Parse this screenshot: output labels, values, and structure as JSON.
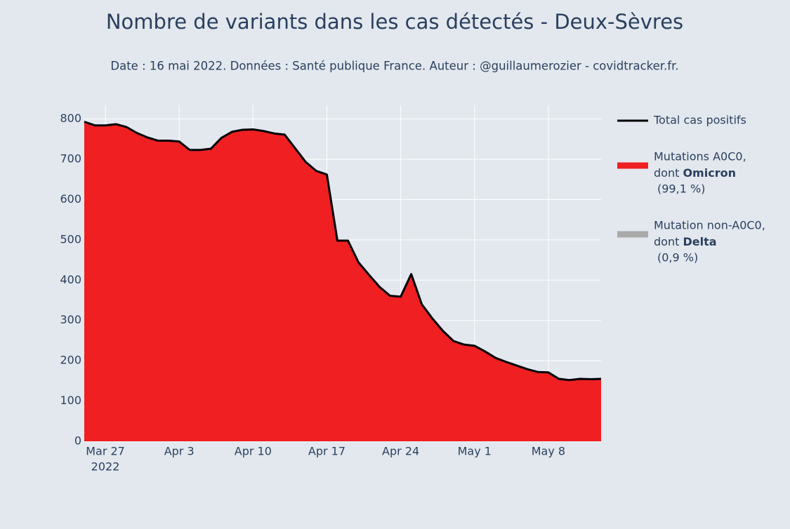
{
  "chart_data": {
    "type": "area",
    "title": "Nombre de variants dans les cas détectés - Deux-Sèvres",
    "subtitle": "Date : 16 mai 2022. Données : Santé publique France. Auteur : @guillaumerozier - covidtracker.fr.",
    "x": [
      "2022-03-25",
      "2022-03-26",
      "2022-03-27",
      "2022-03-28",
      "2022-03-29",
      "2022-03-30",
      "2022-03-31",
      "2022-04-01",
      "2022-04-02",
      "2022-04-03",
      "2022-04-04",
      "2022-04-05",
      "2022-04-06",
      "2022-04-07",
      "2022-04-08",
      "2022-04-09",
      "2022-04-10",
      "2022-04-11",
      "2022-04-12",
      "2022-04-13",
      "2022-04-14",
      "2022-04-15",
      "2022-04-16",
      "2022-04-17",
      "2022-04-18",
      "2022-04-19",
      "2022-04-20",
      "2022-04-21",
      "2022-04-22",
      "2022-04-23",
      "2022-04-24",
      "2022-04-25",
      "2022-04-26",
      "2022-04-27",
      "2022-04-28",
      "2022-04-29",
      "2022-04-30",
      "2022-05-01",
      "2022-05-02",
      "2022-05-03",
      "2022-05-04",
      "2022-05-05",
      "2022-05-06",
      "2022-05-07",
      "2022-05-08",
      "2022-05-09",
      "2022-05-10",
      "2022-05-11",
      "2022-05-12",
      "2022-05-13"
    ],
    "series": [
      {
        "name": {
          "line1": "Total cas positifs"
        },
        "color": "#000000",
        "kind": "line",
        "values": [
          793,
          784,
          784,
          787,
          780,
          765,
          754,
          746,
          746,
          744,
          723,
          723,
          726,
          753,
          768,
          773,
          774,
          770,
          764,
          761,
          727,
          693,
          671,
          662,
          498,
          498,
          444,
          413,
          383,
          361,
          359,
          415,
          340,
          305,
          274,
          249,
          240,
          237,
          223,
          207,
          197,
          188,
          179,
          172,
          171,
          155,
          152,
          155,
          154,
          155
        ]
      },
      {
        "name": {
          "line1": "Mutations A0C0,",
          "line2": "dont ",
          "bold": "Omicron",
          "line3": "(99,1 %)"
        },
        "color": "#ef1f22",
        "kind": "area",
        "values": [
          793,
          784,
          784,
          787,
          780,
          765,
          754,
          746,
          746,
          744,
          723,
          723,
          726,
          753,
          768,
          773,
          774,
          770,
          764,
          761,
          727,
          693,
          671,
          662,
          498,
          498,
          444,
          413,
          383,
          361,
          359,
          415,
          340,
          305,
          274,
          249,
          240,
          237,
          223,
          207,
          197,
          188,
          179,
          172,
          171,
          155,
          152,
          155,
          154,
          155
        ]
      },
      {
        "name": {
          "line1": "Mutation non-A0C0,",
          "line2": "dont ",
          "bold": "Delta",
          "line3": "(0,9 %)"
        },
        "color": "#a9a9a9",
        "kind": "area",
        "values": [
          0,
          0,
          0,
          0,
          0,
          0,
          0,
          0,
          0,
          0,
          0,
          0,
          0,
          0,
          0,
          0,
          0,
          0,
          0,
          0,
          0,
          0,
          0,
          0,
          0,
          0,
          0,
          0,
          0,
          0,
          0,
          0,
          0,
          0,
          0,
          0,
          0,
          0,
          0,
          0,
          0,
          0,
          0,
          0,
          0,
          0,
          0,
          0,
          0,
          0
        ]
      }
    ],
    "xlim": [
      "2022-03-25",
      "2022-05-13"
    ],
    "xticks": [
      {
        "value": "2022-03-27",
        "label": "Mar 27",
        "year": "2022"
      },
      {
        "value": "2022-04-03",
        "label": "Apr 3"
      },
      {
        "value": "2022-04-10",
        "label": "Apr 10"
      },
      {
        "value": "2022-04-17",
        "label": "Apr 17"
      },
      {
        "value": "2022-04-24",
        "label": "Apr 24"
      },
      {
        "value": "2022-05-01",
        "label": "May 1"
      },
      {
        "value": "2022-05-08",
        "label": "May 8"
      }
    ],
    "ylim": [
      0,
      834
    ],
    "yticks": [
      0,
      100,
      200,
      300,
      400,
      500,
      600,
      700,
      800
    ],
    "grid": true
  }
}
